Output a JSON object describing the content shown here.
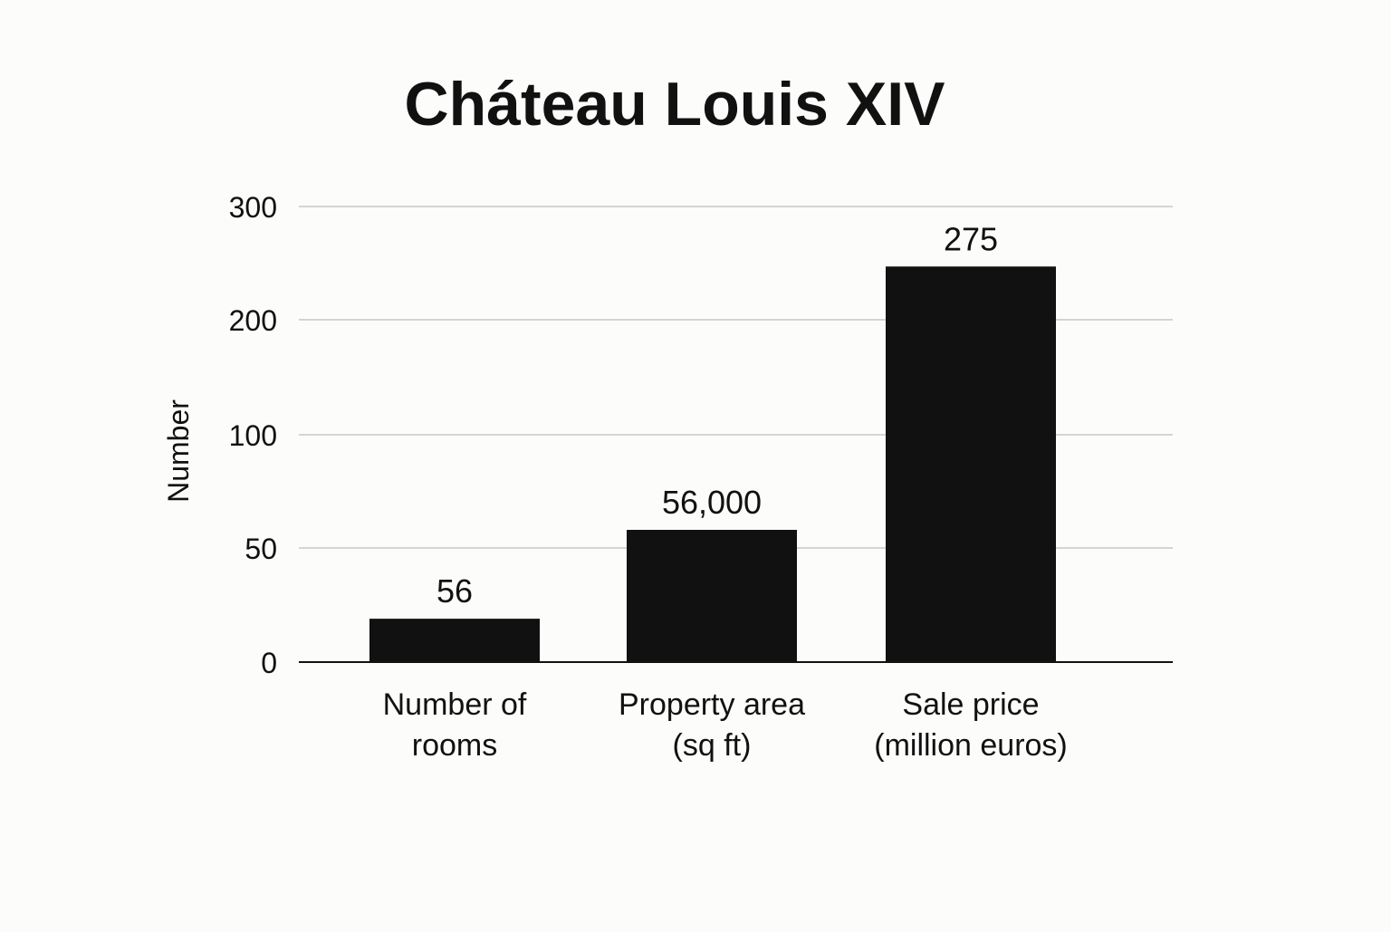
{
  "chart_data": {
    "type": "bar",
    "title": "Cháteau Louis XIV",
    "xlabel": "",
    "ylabel": "Number",
    "y_ticks": [
      0,
      50,
      100,
      200,
      300
    ],
    "grid": true,
    "legend": "none",
    "categories": [
      [
        "Number of",
        "rooms"
      ],
      [
        "Property area",
        "(sq ft)"
      ],
      [
        "Sale price",
        "(million euros)"
      ]
    ],
    "values": [
      56,
      56000,
      275
    ],
    "bar_levels": [
      19,
      58,
      247
    ],
    "data_labels": [
      "56",
      "56,000",
      "275"
    ],
    "bar_color": "#111111",
    "grid_color": "#d4d4d4"
  }
}
